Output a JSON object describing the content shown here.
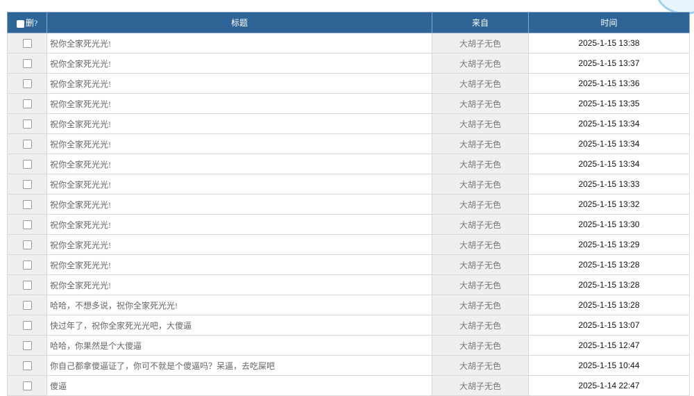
{
  "header": {
    "delete": "删?",
    "title": "标题",
    "from": "来自",
    "time": "时间"
  },
  "rows": [
    {
      "title": "祝你全家死光光!",
      "from": "大胡子无色",
      "time": "2025-1-15 13:38"
    },
    {
      "title": "祝你全家死光光!",
      "from": "大胡子无色",
      "time": "2025-1-15 13:37"
    },
    {
      "title": "祝你全家死光光!",
      "from": "大胡子无色",
      "time": "2025-1-15 13:36"
    },
    {
      "title": "祝你全家死光光!",
      "from": "大胡子无色",
      "time": "2025-1-15 13:35"
    },
    {
      "title": "祝你全家死光光!",
      "from": "大胡子无色",
      "time": "2025-1-15 13:34"
    },
    {
      "title": "祝你全家死光光!",
      "from": "大胡子无色",
      "time": "2025-1-15 13:34"
    },
    {
      "title": "祝你全家死光光!",
      "from": "大胡子无色",
      "time": "2025-1-15 13:34"
    },
    {
      "title": "祝你全家死光光!",
      "from": "大胡子无色",
      "time": "2025-1-15 13:33"
    },
    {
      "title": "祝你全家死光光!",
      "from": "大胡子无色",
      "time": "2025-1-15 13:32"
    },
    {
      "title": "祝你全家死光光!",
      "from": "大胡子无色",
      "time": "2025-1-15 13:30"
    },
    {
      "title": "祝你全家死光光!",
      "from": "大胡子无色",
      "time": "2025-1-15 13:29"
    },
    {
      "title": "祝你全家死光光!",
      "from": "大胡子无色",
      "time": "2025-1-15 13:28"
    },
    {
      "title": "祝你全家死光光!",
      "from": "大胡子无色",
      "time": "2025-1-15 13:28"
    },
    {
      "title": "哈哈，不想多说，祝你全家死光光!",
      "from": "大胡子无色",
      "time": "2025-1-15 13:28"
    },
    {
      "title": "快过年了，祝你全家死光光吧，大傻逼",
      "from": "大胡子无色",
      "time": "2025-1-15 13:07"
    },
    {
      "title": "哈哈，你果然是个大傻逼",
      "from": "大胡子无色",
      "time": "2025-1-15 12:47"
    },
    {
      "title": "你自己都拿傻逼证了，你可不就是个傻逼吗？呆逼，去吃屎吧",
      "from": "大胡子无色",
      "time": "2025-1-15 10:44"
    },
    {
      "title": "傻逼",
      "from": "大胡子无色",
      "time": "2025-1-14 22:47"
    }
  ]
}
